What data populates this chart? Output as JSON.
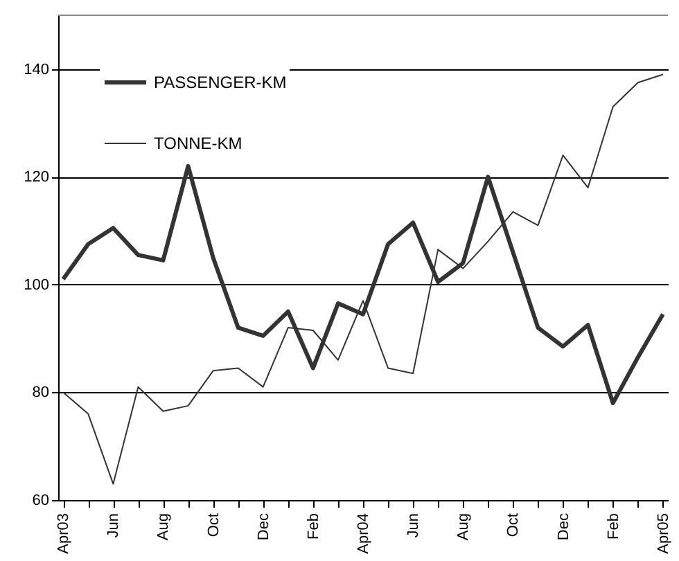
{
  "chart_data": {
    "type": "line",
    "categories": [
      "Apr03",
      null,
      "Jun",
      null,
      "Aug",
      null,
      "Oct",
      null,
      "Dec",
      null,
      "Feb",
      null,
      "Apr04",
      null,
      "Jun",
      null,
      "Aug",
      null,
      "Oct",
      null,
      "Dec",
      null,
      "Feb",
      null,
      "Apr05"
    ],
    "series": [
      {
        "name": "PASSENGER-KM",
        "color": "#333333",
        "values": [
          101,
          107.5,
          110.5,
          105.5,
          104.5,
          122,
          105,
          92,
          90.5,
          95,
          84.5,
          96.5,
          94.5,
          107.5,
          111.5,
          100.5,
          104,
          120,
          106,
          92,
          88.5,
          92.5,
          78,
          86.5,
          94.5
        ]
      },
      {
        "name": "TONNE-KM",
        "color": "#333333",
        "values": [
          80,
          76,
          63,
          81,
          76.5,
          77.5,
          84,
          84.5,
          81,
          92,
          91.5,
          86,
          97,
          84.5,
          83.5,
          106.5,
          103,
          108,
          113.5,
          111,
          124,
          118,
          133,
          137.5,
          139
        ]
      }
    ],
    "ylim": [
      60,
      150
    ],
    "yticks": [
      60,
      80,
      100,
      120,
      140
    ],
    "grid": "y",
    "legend": "top left"
  }
}
